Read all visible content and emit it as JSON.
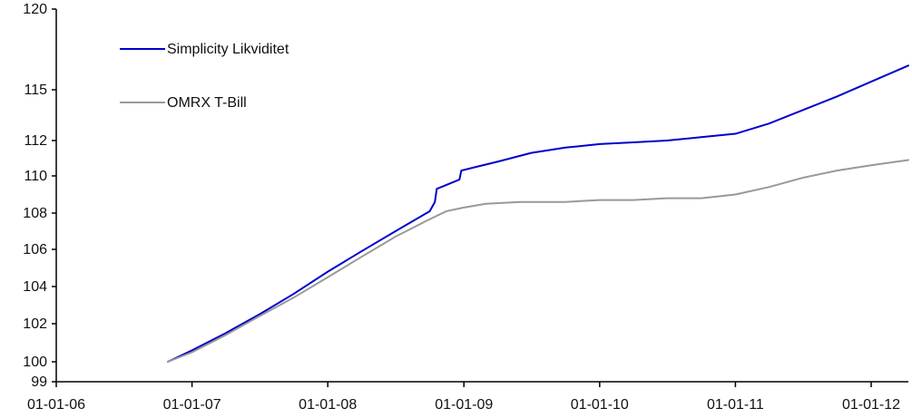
{
  "chart_data": {
    "type": "line",
    "title": "",
    "xlabel": "",
    "ylabel": "",
    "x_ticks": [
      "01-01-06",
      "01-01-07",
      "01-01-08",
      "01-01-09",
      "01-01-10",
      "01-01-11",
      "01-01-12"
    ],
    "y_ticks": [
      99,
      100,
      102,
      104,
      106,
      108,
      110,
      112,
      115,
      120
    ],
    "xlim": [
      "2006-01-01",
      "2012-04-10"
    ],
    "ylim": [
      99,
      120
    ],
    "y_scale": "nonlinear (labeled ticks unevenly spaced)",
    "grid": false,
    "legend_position": "top-left",
    "series": [
      {
        "name": "Simplicity Likviditet",
        "color": "#0000cc",
        "points": [
          [
            "2006-10-28",
            100.0
          ],
          [
            "2007-01-01",
            100.6
          ],
          [
            "2007-04-01",
            101.5
          ],
          [
            "2007-07-01",
            102.5
          ],
          [
            "2007-10-01",
            103.6
          ],
          [
            "2008-01-01",
            104.8
          ],
          [
            "2008-04-01",
            105.9
          ],
          [
            "2008-07-01",
            107.0
          ],
          [
            "2008-10-01",
            108.1
          ],
          [
            "2008-10-15",
            108.6
          ],
          [
            "2008-10-20",
            109.3
          ],
          [
            "2008-12-20",
            109.8
          ],
          [
            "2008-12-25",
            110.3
          ],
          [
            "2009-02-01",
            110.5
          ],
          [
            "2009-04-01",
            110.8
          ],
          [
            "2009-07-01",
            111.3
          ],
          [
            "2009-10-01",
            111.6
          ],
          [
            "2010-01-01",
            111.8
          ],
          [
            "2010-04-01",
            111.9
          ],
          [
            "2010-07-01",
            112.0
          ],
          [
            "2010-10-01",
            112.2
          ],
          [
            "2011-01-01",
            112.4
          ],
          [
            "2011-04-01",
            113.0
          ],
          [
            "2011-07-01",
            113.8
          ],
          [
            "2011-10-01",
            114.6
          ],
          [
            "2012-01-01",
            115.5
          ],
          [
            "2012-04-10",
            116.5
          ]
        ]
      },
      {
        "name": "OMRX T-Bill",
        "color": "#999999",
        "points": [
          [
            "2006-10-28",
            100.0
          ],
          [
            "2007-01-01",
            100.5
          ],
          [
            "2007-04-01",
            101.4
          ],
          [
            "2007-07-01",
            102.4
          ],
          [
            "2007-10-01",
            103.4
          ],
          [
            "2008-01-01",
            104.5
          ],
          [
            "2008-04-01",
            105.6
          ],
          [
            "2008-07-01",
            106.7
          ],
          [
            "2008-09-25",
            107.6
          ],
          [
            "2008-11-15",
            108.1
          ],
          [
            "2009-01-01",
            108.3
          ],
          [
            "2009-03-01",
            108.5
          ],
          [
            "2009-06-01",
            108.6
          ],
          [
            "2009-10-01",
            108.6
          ],
          [
            "2010-01-01",
            108.7
          ],
          [
            "2010-04-01",
            108.7
          ],
          [
            "2010-07-01",
            108.8
          ],
          [
            "2010-10-01",
            108.8
          ],
          [
            "2011-01-01",
            109.0
          ],
          [
            "2011-04-01",
            109.4
          ],
          [
            "2011-07-01",
            109.9
          ],
          [
            "2011-10-01",
            110.3
          ],
          [
            "2012-01-01",
            110.6
          ],
          [
            "2012-04-10",
            110.9
          ]
        ]
      }
    ]
  }
}
